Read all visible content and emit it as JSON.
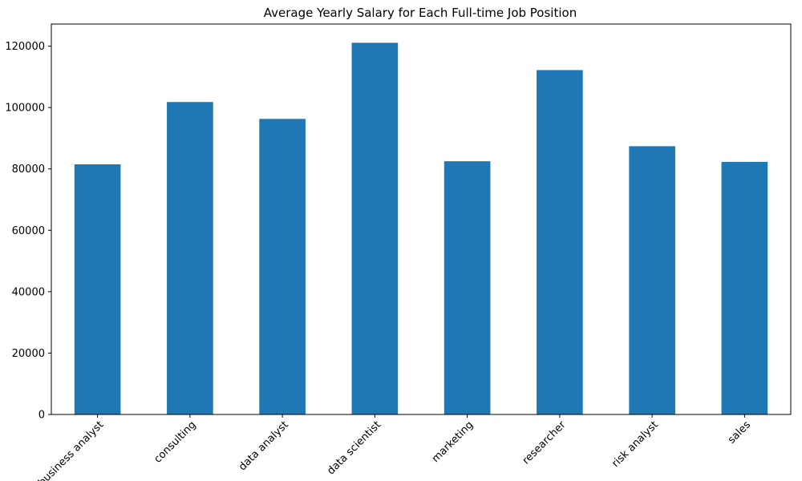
{
  "chart_data": {
    "type": "bar",
    "title": "Average Yearly Salary for Each Full-time Job Position",
    "xlabel": "",
    "ylabel": "",
    "categories": [
      "business analyst",
      "consulting",
      "data analyst",
      "data scientist",
      "marketing",
      "researcher",
      "risk analyst",
      "sales"
    ],
    "values": [
      81500,
      101800,
      96300,
      121100,
      82500,
      112200,
      87400,
      82300
    ],
    "ylim": [
      0,
      127200
    ],
    "yticks": [
      0,
      20000,
      40000,
      60000,
      80000,
      100000,
      120000
    ],
    "ytick_labels": [
      "0",
      "20000",
      "40000",
      "60000",
      "80000",
      "100000",
      "120000"
    ],
    "xtick_rotation": -45,
    "bar_color": "#1f77b4",
    "grid": false,
    "legend": "none"
  }
}
